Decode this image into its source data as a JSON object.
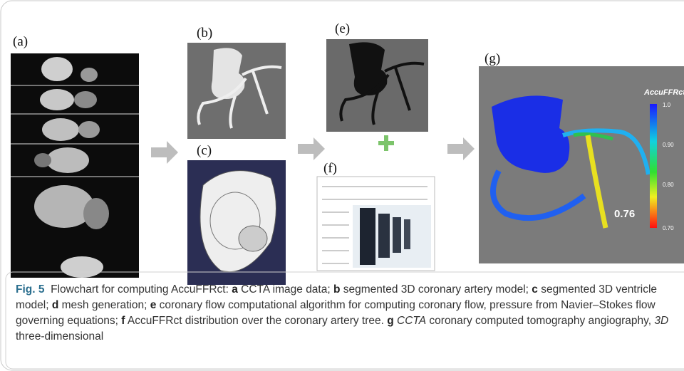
{
  "panels": {
    "a": "(a)",
    "b": "(b)",
    "c": "(c)",
    "e": "(e)",
    "f": "(f)",
    "g": "(g)"
  },
  "legend": {
    "title": "AccuFFRct",
    "ticks": [
      "1.0",
      "0.90",
      "0.80",
      "0.70"
    ]
  },
  "annotation": "0.76",
  "caption": {
    "label": "Fig. 5",
    "intro": "Flowchart for computing AccuFFRct:",
    "items": [
      {
        "key": "a",
        "text": "CCTA image data;"
      },
      {
        "key": "b",
        "text": "segmented 3D coronary artery model;"
      },
      {
        "key": "c",
        "text": "segmented 3D ventricle model;"
      },
      {
        "key": "d",
        "text": "mesh generation;"
      },
      {
        "key": "e",
        "text": "coronary flow computational algorithm for computing coronary flow, pressure from Navier–Stokes flow governing equations;"
      },
      {
        "key": "f",
        "text": "AccuFFRct distribution over the coronary artery tree."
      },
      {
        "key": "g",
        "text": ""
      }
    ],
    "abbreviations": [
      {
        "term": "CCTA",
        "text": "coronary computed tomography angiography,"
      },
      {
        "term": "3D",
        "text": "three-dimensional"
      }
    ]
  }
}
